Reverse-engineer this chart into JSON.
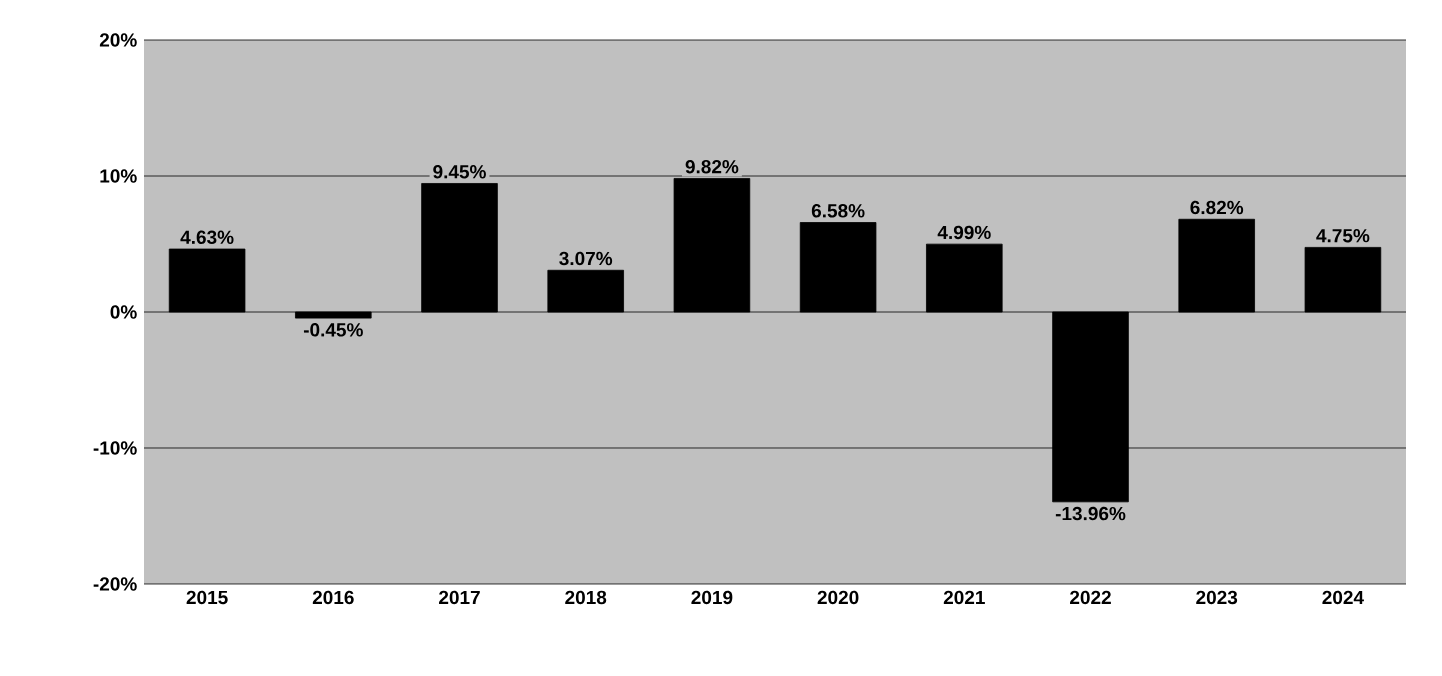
{
  "chart_data": {
    "type": "bar",
    "categories": [
      "2015",
      "2016",
      "2017",
      "2018",
      "2019",
      "2020",
      "2021",
      "2022",
      "2023",
      "2024"
    ],
    "values": [
      4.63,
      -0.45,
      9.45,
      3.07,
      9.82,
      6.58,
      4.99,
      -13.96,
      6.82,
      4.75
    ],
    "value_labels": [
      "4.63%",
      "-0.45%",
      "9.45%",
      "3.07%",
      "9.82%",
      "6.58%",
      "4.99%",
      "-13.96%",
      "6.82%",
      "4.75%"
    ],
    "color": "#000000",
    "ylim": [
      -20,
      20
    ],
    "yticks": [
      {
        "value": -20,
        "label": "-20%"
      },
      {
        "value": -10,
        "label": "-10%"
      },
      {
        "value": 0,
        "label": "0%"
      },
      {
        "value": 10,
        "label": "10%"
      },
      {
        "value": 20,
        "label": "20%"
      }
    ],
    "grid": "y"
  }
}
